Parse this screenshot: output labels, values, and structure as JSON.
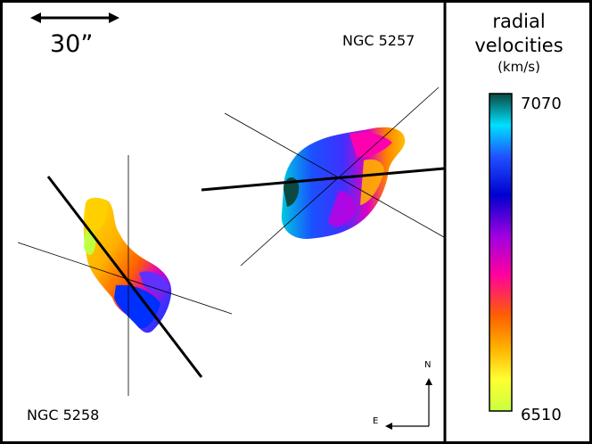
{
  "scale_bar": {
    "label": "30”"
  },
  "galaxies": [
    {
      "name": "NGC 5257"
    },
    {
      "name": "NGC 5258"
    }
  ],
  "colorbar": {
    "title_line1": "radial",
    "title_line2": "velocities",
    "unit": "(km/s)",
    "max": "7070",
    "min": "6510",
    "colormap": [
      "#0a4a40",
      "#00e0ff",
      "#2050ff",
      "#0000d0",
      "#a000e0",
      "#ff00a0",
      "#ff6000",
      "#ffb000",
      "#ffff30",
      "#c8ff40"
    ]
  },
  "compass": {
    "north": "N",
    "east": "E"
  },
  "colors": {
    "border": "#000000",
    "background": "#ffffff"
  }
}
